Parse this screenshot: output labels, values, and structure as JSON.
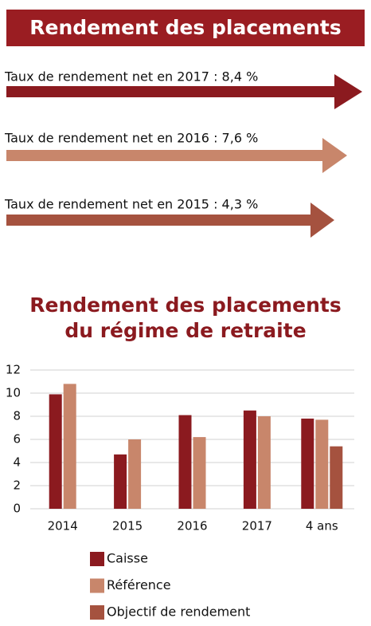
{
  "header": {
    "title": "Rendement des placements"
  },
  "arrows": [
    {
      "label": "Taux de rendement net en 2017 : 8,4 %",
      "color": "#8b1a1f"
    },
    {
      "label": "Taux de rendement net en 2016 : 7,6 %",
      "color": "#c8866b"
    },
    {
      "label": "Taux de rendement net en 2015 : 4,3 %",
      "color": "#a5523f"
    }
  ],
  "chart_data": {
    "type": "bar",
    "title": [
      "Rendement des placements",
      "du régime de retraite"
    ],
    "categories": [
      "2014",
      "2015",
      "2016",
      "2017",
      "4 ans"
    ],
    "series": [
      {
        "name": "Caisse",
        "color": "#8b1a1f",
        "values": [
          9.9,
          4.7,
          8.1,
          8.5,
          7.8
        ]
      },
      {
        "name": "Référence",
        "color": "#c8866b",
        "values": [
          10.8,
          6.0,
          6.2,
          8.0,
          7.7
        ]
      },
      {
        "name": "Objectif de rendement",
        "color": "#a5523f",
        "values": [
          null,
          null,
          null,
          null,
          5.4
        ]
      }
    ],
    "ylim": [
      0,
      12
    ],
    "yticks": [
      0,
      2,
      4,
      6,
      8,
      10,
      12
    ],
    "grid": true
  }
}
